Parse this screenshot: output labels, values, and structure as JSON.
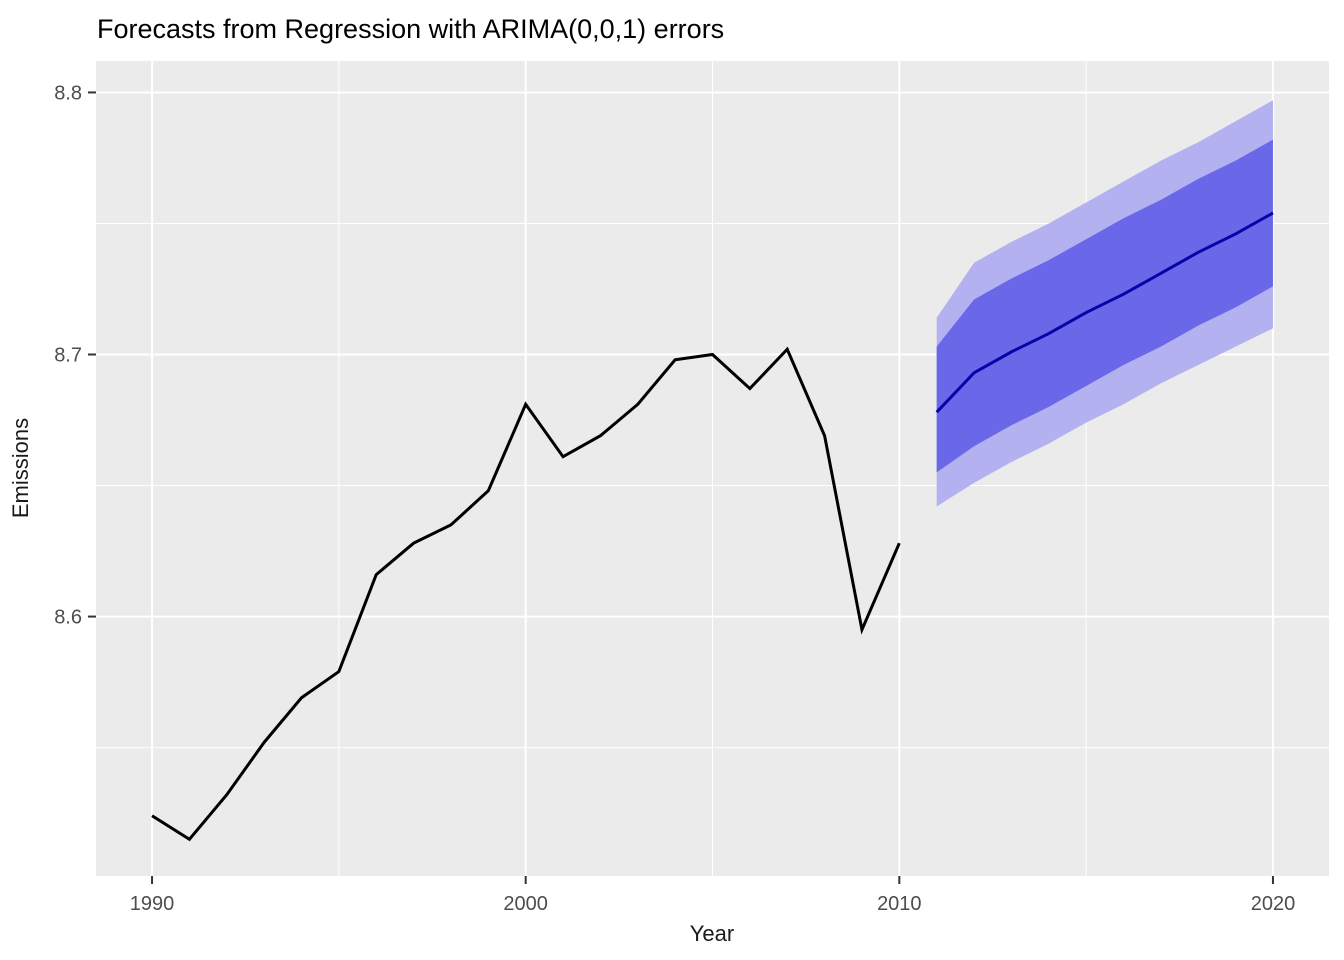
{
  "chart_data": {
    "type": "line",
    "title": "Forecasts from Regression with ARIMA(0,0,1) errors",
    "xlabel": "Year",
    "ylabel": "Emissions",
    "xlim": [
      1988.5,
      2021.5
    ],
    "ylim": [
      8.501,
      8.812
    ],
    "x_ticks": [
      "1990",
      "2000",
      "2010",
      "2020"
    ],
    "x_tick_values": [
      1990,
      2000,
      2010,
      2020
    ],
    "x_minor_values": [
      1995,
      2005,
      2015
    ],
    "y_ticks": [
      "8.6",
      "8.7",
      "8.8"
    ],
    "y_tick_values": [
      8.6,
      8.7,
      8.8
    ],
    "y_minor_values": [
      8.55,
      8.65,
      8.75
    ],
    "grid": true,
    "legend": "none",
    "series": [
      {
        "name": "observed",
        "x": [
          1990,
          1991,
          1992,
          1993,
          1994,
          1995,
          1996,
          1997,
          1998,
          1999,
          2000,
          2001,
          2002,
          2003,
          2004,
          2005,
          2006,
          2007,
          2008,
          2009,
          2010
        ],
        "values": [
          8.524,
          8.515,
          8.532,
          8.552,
          8.569,
          8.579,
          8.616,
          8.628,
          8.635,
          8.648,
          8.681,
          8.661,
          8.669,
          8.681,
          8.698,
          8.7,
          8.687,
          8.702,
          8.669,
          8.595,
          8.628
        ]
      },
      {
        "name": "forecast-mean",
        "x": [
          2011,
          2012,
          2013,
          2014,
          2015,
          2016,
          2017,
          2018,
          2019,
          2020
        ],
        "values": [
          8.678,
          8.693,
          8.701,
          8.708,
          8.716,
          8.723,
          8.731,
          8.739,
          8.746,
          8.754
        ]
      },
      {
        "name": "forecast-lo80",
        "x": [
          2011,
          2012,
          2013,
          2014,
          2015,
          2016,
          2017,
          2018,
          2019,
          2020
        ],
        "values": [
          8.655,
          8.665,
          8.673,
          8.68,
          8.688,
          8.696,
          8.703,
          8.711,
          8.718,
          8.726
        ]
      },
      {
        "name": "forecast-hi80",
        "x": [
          2011,
          2012,
          2013,
          2014,
          2015,
          2016,
          2017,
          2018,
          2019,
          2020
        ],
        "values": [
          8.703,
          8.721,
          8.729,
          8.736,
          8.744,
          8.752,
          8.759,
          8.767,
          8.774,
          8.782
        ]
      },
      {
        "name": "forecast-lo95",
        "x": [
          2011,
          2012,
          2013,
          2014,
          2015,
          2016,
          2017,
          2018,
          2019,
          2020
        ],
        "values": [
          8.642,
          8.651,
          8.659,
          8.666,
          8.674,
          8.681,
          8.689,
          8.696,
          8.703,
          8.71
        ]
      },
      {
        "name": "forecast-hi95",
        "x": [
          2011,
          2012,
          2013,
          2014,
          2015,
          2016,
          2017,
          2018,
          2019,
          2020
        ],
        "values": [
          8.714,
          8.735,
          8.743,
          8.75,
          8.758,
          8.766,
          8.774,
          8.781,
          8.789,
          8.797
        ]
      }
    ],
    "colors": {
      "panel_background": "#EBEBEB",
      "gridline": "#FFFFFF",
      "observed_line": "#000000",
      "forecast_line": "#0504AA",
      "band_80": "#6A68E8",
      "band_95": "#B3B1F0",
      "tick_mark": "#333333",
      "tick_text": "#4D4D4D",
      "axis_text": "#1A1A1A"
    }
  }
}
